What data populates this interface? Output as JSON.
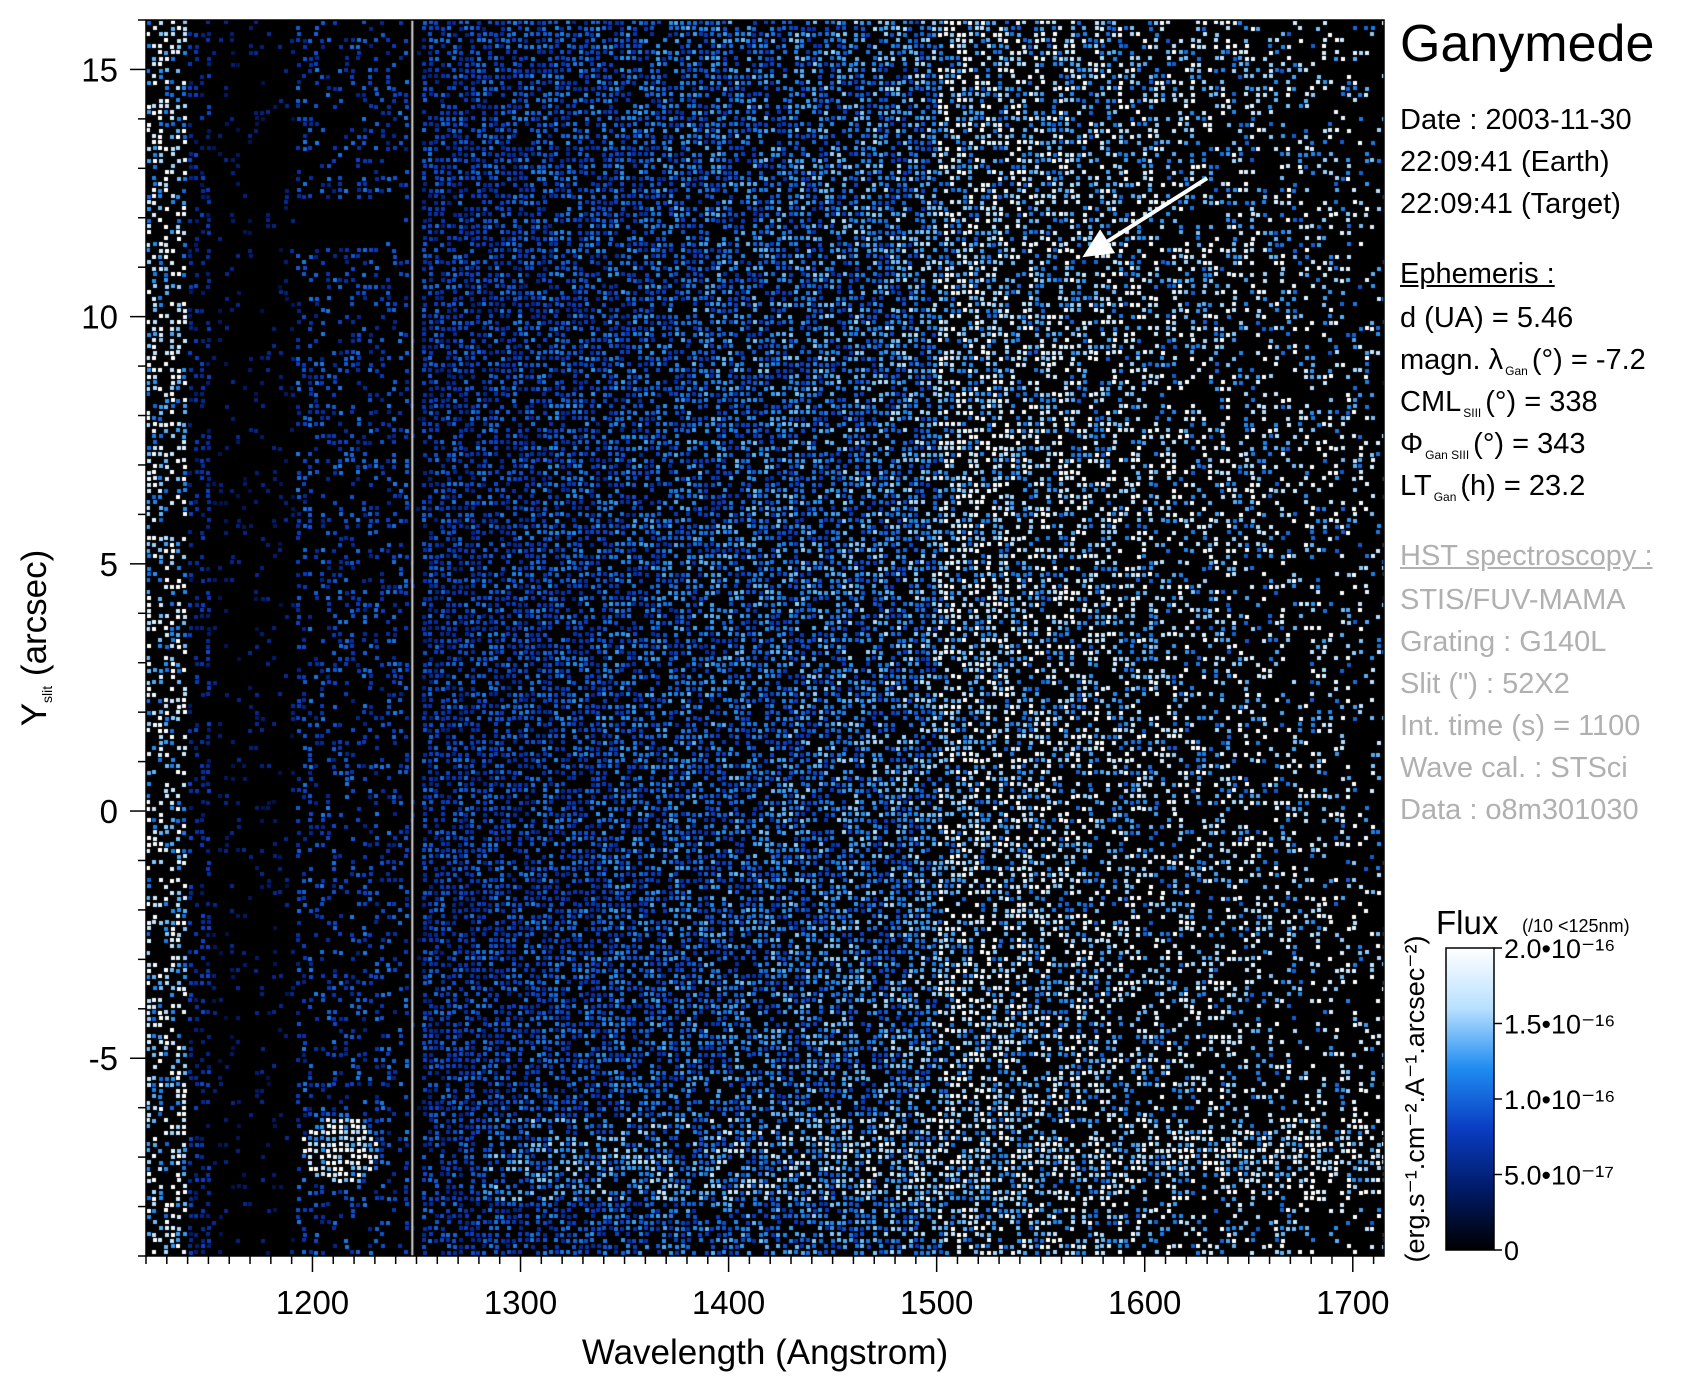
{
  "chart_data": {
    "type": "heatmap",
    "title": "Ganymede",
    "xlabel": "Wavelength (Angstrom)",
    "ylabel": "Y slit (arcsec)",
    "ylabel_main": "Y",
    "ylabel_sub": "slit",
    "ylabel_unit": " (arcsec)",
    "xlim": [
      1120,
      1715
    ],
    "ylim": [
      -9.0,
      16.0
    ],
    "x_ticks": [
      1200,
      1300,
      1400,
      1500,
      1600,
      1700
    ],
    "x_tick_labels": [
      "1200",
      "1300",
      "1400",
      "1500",
      "1600",
      "1700"
    ],
    "y_ticks": [
      -5,
      0,
      5,
      10,
      15
    ],
    "y_tick_labels": [
      "-5",
      "0",
      "5",
      "10",
      "15"
    ],
    "colorscale": {
      "label": "Flux",
      "note": "(/10 <125nm)",
      "units": "(erg.s⁻¹.cm⁻².A⁻¹.arcsec⁻²)",
      "min": 0,
      "max": 2e-16,
      "ticks": [
        {
          "value": 0,
          "label": "0"
        },
        {
          "value": 5e-17,
          "label": "5.0•10⁻¹⁷"
        },
        {
          "value": 1e-16,
          "label": "1.0•10⁻¹⁶"
        },
        {
          "value": 1.5e-16,
          "label": "1.5•10⁻¹⁶"
        },
        {
          "value": 2e-16,
          "label": "2.0•10⁻¹⁶"
        }
      ],
      "colors": [
        "#000000",
        "#001a66",
        "#0a3cc2",
        "#1e8cf0",
        "#b8e0ff",
        "#ffffff"
      ]
    },
    "features": [
      {
        "kind": "emission_band",
        "x_start": 1280,
        "x_end": 1715,
        "y": -7.0
      },
      {
        "kind": "bright_blob",
        "x": 1212,
        "y": -6.8
      },
      {
        "kind": "bright_column",
        "x_start": 1120,
        "x_end": 1140
      },
      {
        "kind": "slit_gap",
        "x": 1248
      },
      {
        "kind": "arrow",
        "from": [
          1630,
          12.8
        ],
        "to": [
          1570,
          11.2
        ]
      }
    ]
  },
  "panel": {
    "title": "Ganymede",
    "date_line": "Date : 2003-11-30",
    "earth_line": "22:09:41 (Earth)",
    "target_line": "22:09:41 (Target)",
    "ephemeris_head": "Ephemeris :",
    "d_line": "d (UA)     = 5.46",
    "magn_pre": "magn. λ",
    "magn_sub": "Gan",
    "magn_post": "(°)  = -7.2",
    "cml_pre": "CML",
    "cml_sub": "SIII",
    "cml_post": "(°) = 338",
    "phi_pre": "Φ",
    "phi_sub": "Gan SIII",
    "phi_post": "(°) = 343",
    "lt_pre": "LT",
    "lt_sub": "Gan",
    "lt_post": "(h) = 23.2",
    "hst_head": "HST spectroscopy :",
    "instrument": "STIS/FUV-MAMA",
    "grating": "Grating : G140L",
    "slit": "Slit (\") : 52X2",
    "int_time": "Int. time (s) = 1100",
    "wave_cal": "Wave cal. : STSci",
    "data_id": "Data : o8m301030"
  }
}
